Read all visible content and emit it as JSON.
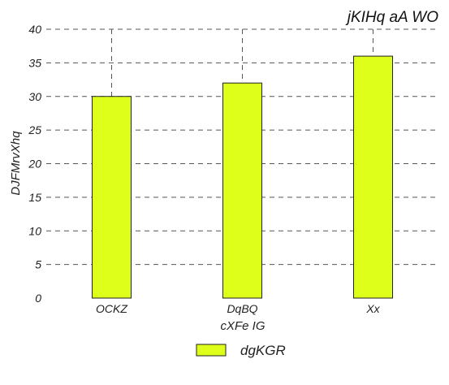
{
  "chart_data": {
    "type": "bar",
    "title": "jKIHq  aA WO",
    "xlabel": "cXFe IG",
    "ylabel": "DJFMrvXhq",
    "categories": [
      "OCKZ",
      "DqBQ",
      "Xx"
    ],
    "series": [
      {
        "name": "dgKGR",
        "values": [
          30,
          32,
          36
        ],
        "color": "#ddff1a"
      }
    ],
    "ylim": [
      0,
      40
    ],
    "yticks": [
      0,
      5,
      10,
      15,
      20,
      25,
      30,
      35,
      40
    ],
    "grid": true,
    "grid_style": "dashed",
    "legend_position": "bottom-center"
  }
}
